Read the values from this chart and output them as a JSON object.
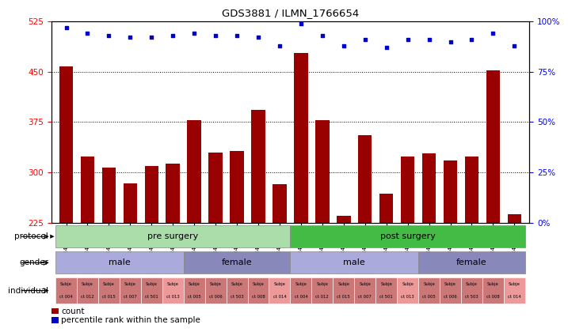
{
  "title": "GDS3881 / ILMN_1766654",
  "samples": [
    "GSM494319",
    "GSM494325",
    "GSM494327",
    "GSM494329",
    "GSM494331",
    "GSM494337",
    "GSM494321",
    "GSM494323",
    "GSM494333",
    "GSM494335",
    "GSM494339",
    "GSM494320",
    "GSM494326",
    "GSM494328",
    "GSM494330",
    "GSM494332",
    "GSM494338",
    "GSM494322",
    "GSM494324",
    "GSM494334",
    "GSM494336",
    "GSM494340"
  ],
  "counts": [
    458,
    323,
    307,
    283,
    310,
    313,
    378,
    330,
    332,
    393,
    282,
    478,
    378,
    235,
    355,
    268,
    323,
    328,
    318,
    323,
    452,
    238
  ],
  "percentiles": [
    97,
    94,
    93,
    92,
    92,
    93,
    94,
    93,
    93,
    92,
    88,
    99,
    93,
    88,
    91,
    87,
    91,
    91,
    90,
    91,
    94,
    88
  ],
  "ylim_left": [
    225,
    525
  ],
  "ylim_right": [
    0,
    100
  ],
  "yticks_left": [
    225,
    300,
    375,
    450,
    525
  ],
  "yticks_right": [
    0,
    25,
    50,
    75,
    100
  ],
  "bar_color": "#990000",
  "dot_color": "#0000cc",
  "grid_values": [
    300,
    375,
    450
  ],
  "protocol_groups": [
    {
      "label": "pre surgery",
      "start": 0,
      "end": 11,
      "color": "#aaddaa"
    },
    {
      "label": "post surgery",
      "start": 11,
      "end": 22,
      "color": "#44bb44"
    }
  ],
  "gender_groups": [
    {
      "label": "male",
      "start": 0,
      "end": 6,
      "color": "#aaaadd"
    },
    {
      "label": "female",
      "start": 6,
      "end": 11,
      "color": "#8888bb"
    },
    {
      "label": "male",
      "start": 11,
      "end": 17,
      "color": "#aaaadd"
    },
    {
      "label": "female",
      "start": 17,
      "end": 22,
      "color": "#8888bb"
    }
  ],
  "individual_labels": [
    "ct 004",
    "ct 012",
    "ct 015",
    "ct 007",
    "ct 501",
    "ct 013",
    "ct 005",
    "ct 006",
    "ct 503",
    "ct 008",
    "ct 014",
    "ct 004",
    "ct 012",
    "ct 015",
    "ct 007",
    "ct 501",
    "ct 013",
    "ct 005",
    "ct 006",
    "ct 503",
    "ct 008",
    "ct 014"
  ],
  "individual_colors": [
    "#cc7777",
    "#cc7777",
    "#cc7777",
    "#cc7777",
    "#cc7777",
    "#ee9999",
    "#cc7777",
    "#cc7777",
    "#cc7777",
    "#cc7777",
    "#ee9999",
    "#cc7777",
    "#cc7777",
    "#cc7777",
    "#cc7777",
    "#cc7777",
    "#ee9999",
    "#cc7777",
    "#cc7777",
    "#cc7777",
    "#cc7777",
    "#ee9999"
  ]
}
